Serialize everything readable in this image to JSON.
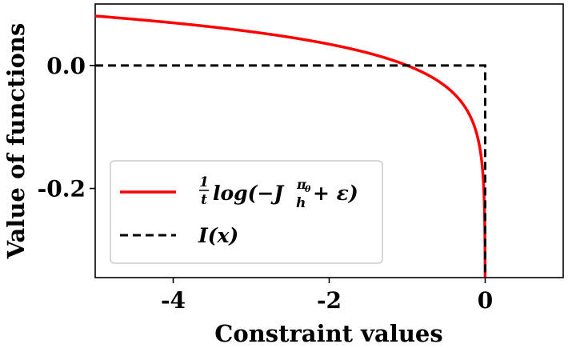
{
  "chart_data": {
    "type": "line",
    "xlabel": "Constraint values",
    "ylabel": "Value of functions",
    "xlim": [
      -5,
      1
    ],
    "ylim": [
      -0.345,
      0.1
    ],
    "xticks": [
      -4,
      -2,
      0
    ],
    "yticks": [
      -0.2,
      0.0
    ],
    "xtick_labels": [
      "-4",
      "-2",
      "0"
    ],
    "ytick_labels": [
      "-0.2",
      "0.0"
    ],
    "grid": false,
    "legend_position": "lower-left",
    "series": [
      {
        "name": "1/t log(−J_h^{π_θ} + ε)",
        "color": "#ff0000",
        "style": "solid",
        "function": "log_barrier",
        "t": 20,
        "epsilon": 1e-06,
        "x": [
          -5,
          -4,
          -3,
          -2,
          -1.5,
          -1,
          -0.5,
          -0.25,
          -0.1,
          -0.05,
          -0.01,
          -0.001,
          0
        ],
        "y": [
          0.0805,
          0.0693,
          0.0549,
          0.0347,
          0.0203,
          0.0,
          -0.0347,
          -0.0693,
          -0.1151,
          -0.1498,
          -0.2303,
          -0.3454,
          -0.345
        ]
      },
      {
        "name": "I(x)",
        "color": "#000000",
        "style": "dashed",
        "x": [
          -5,
          0,
          0
        ],
        "y": [
          0.0,
          0.0,
          -0.345
        ]
      }
    ],
    "legend": {
      "entries": [
        {
          "frac": "1",
          "den": "t",
          "text": "log(−J",
          "sub": "h",
          "sup": "π",
          "supsub": "θ",
          "tail": " + ε)"
        },
        {
          "text": "I(x)"
        }
      ]
    }
  }
}
